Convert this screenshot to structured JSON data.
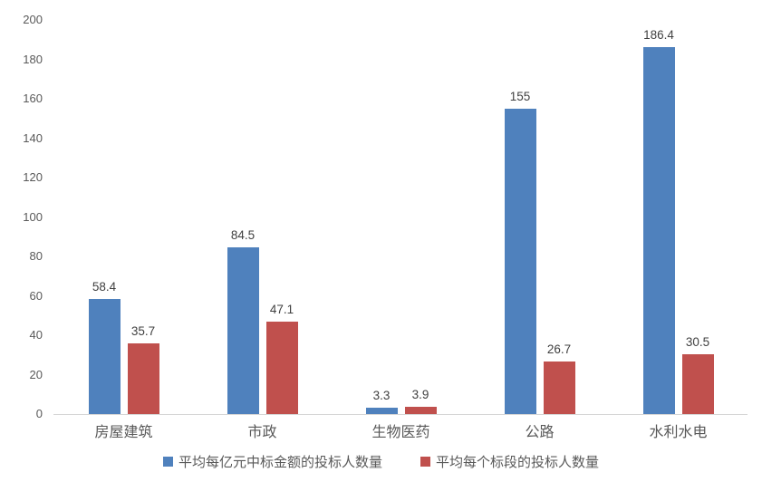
{
  "chart_data": {
    "type": "bar",
    "title": "",
    "xlabel": "",
    "ylabel": "",
    "categories": [
      "房屋建筑",
      "市政",
      "生物医药",
      "公路",
      "水利水电"
    ],
    "series": [
      {
        "name": "平均每亿元中标金额的投标人数量",
        "color": "#4F81BD",
        "values": [
          58.4,
          84.5,
          3.3,
          155,
          186.4
        ]
      },
      {
        "name": "平均每个标段的投标人数量",
        "color": "#C0504D",
        "values": [
          35.7,
          47.1,
          3.9,
          26.7,
          30.5
        ]
      }
    ],
    "data_labels": [
      [
        "58.4",
        "84.5",
        "3.3",
        "155",
        "186.4"
      ],
      [
        "35.7",
        "47.1",
        "3.9",
        "26.7",
        "30.5"
      ]
    ],
    "ylim": [
      0,
      200
    ],
    "ytick_step": 20,
    "ytick_labels": [
      "0",
      "20",
      "40",
      "60",
      "80",
      "100",
      "120",
      "140",
      "160",
      "180",
      "200"
    ],
    "grid": false,
    "legend_position": "bottom"
  },
  "colors": {
    "series_blue": "#4F81BD",
    "series_red": "#C0504D",
    "axis_line": "#D6D6D6",
    "tick_label": "#595959",
    "data_label": "#404040",
    "background": "#FFFFFF"
  }
}
